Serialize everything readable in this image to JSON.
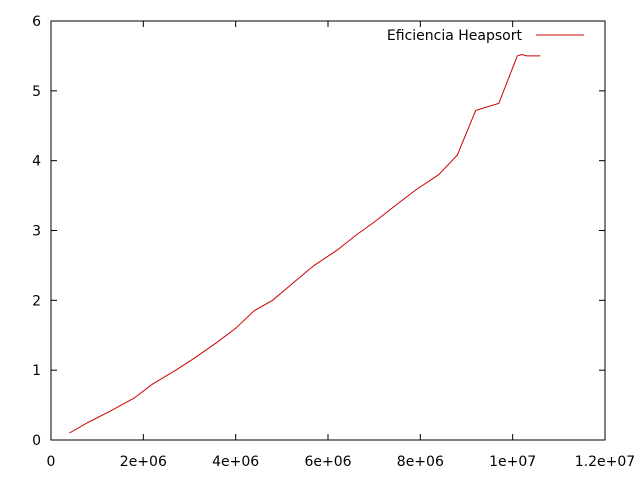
{
  "chart_data": {
    "type": "line",
    "title": "",
    "xlabel": "",
    "ylabel": "",
    "xlim": [
      0,
      12000000
    ],
    "ylim": [
      0,
      6
    ],
    "x_ticks": [
      0,
      2000000,
      4000000,
      6000000,
      8000000,
      10000000,
      12000000
    ],
    "x_tick_labels": [
      "0",
      "2e+06",
      "4e+06",
      "6e+06",
      "8e+06",
      "1e+07",
      "1.2e+07"
    ],
    "y_ticks": [
      0,
      1,
      2,
      3,
      4,
      5,
      6
    ],
    "y_tick_labels": [
      "0",
      "1",
      "2",
      "3",
      "4",
      "5",
      "6"
    ],
    "grid": false,
    "legend_position": "top-right",
    "series": [
      {
        "name": "Eficiencia Heapsort",
        "color": "#cc0000",
        "x": [
          400000,
          800000,
          1300000,
          1800000,
          2200000,
          2700000,
          3100000,
          3600000,
          4000000,
          4400000,
          4800000,
          5300000,
          5700000,
          6200000,
          6600000,
          7000000,
          7500000,
          7900000,
          8400000,
          8800000,
          9200000,
          9700000,
          10100000,
          10200000,
          10300000,
          10600000
        ],
        "y": [
          0.1,
          0.25,
          0.42,
          0.6,
          0.8,
          1.0,
          1.17,
          1.4,
          1.6,
          1.85,
          2.0,
          2.28,
          2.5,
          2.72,
          2.93,
          3.12,
          3.38,
          3.58,
          3.8,
          4.08,
          4.72,
          4.82,
          5.5,
          5.52,
          5.5,
          5.5
        ]
      }
    ]
  }
}
